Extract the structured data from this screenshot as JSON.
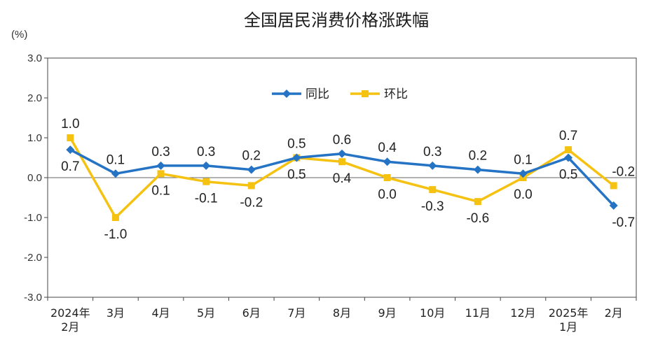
{
  "chart_data": {
    "type": "line",
    "title": "全国居民消费价格涨跌幅",
    "unit_label": "(%)",
    "ylim": [
      -3.0,
      3.0
    ],
    "y_ticks": [
      "3.0",
      "2.0",
      "1.0",
      "0.0",
      "-1.0",
      "-2.0",
      "-3.0"
    ],
    "categories": [
      [
        "2024年",
        "2月"
      ],
      [
        "3月"
      ],
      [
        "4月"
      ],
      [
        "5月"
      ],
      [
        "6月"
      ],
      [
        "7月"
      ],
      [
        "8月"
      ],
      [
        "9月"
      ],
      [
        "10月"
      ],
      [
        "11月"
      ],
      [
        "12月"
      ],
      [
        "2025年",
        "1月"
      ],
      [
        "2月"
      ]
    ],
    "legend_position": "top-center",
    "grid": false,
    "series": [
      {
        "name": "同比",
        "color": "#2473c4",
        "marker": "diamond",
        "values": [
          0.7,
          0.1,
          0.3,
          0.3,
          0.2,
          0.5,
          0.6,
          0.4,
          0.3,
          0.2,
          0.1,
          0.5,
          -0.7
        ],
        "labels": [
          "0.7",
          "0.1",
          "0.3",
          "0.3",
          "0.2",
          "0.5",
          "0.6",
          "0.4",
          "0.3",
          "0.2",
          "0.1",
          "0.5",
          "-0.7"
        ]
      },
      {
        "name": "环比",
        "color": "#f5c211",
        "marker": "square",
        "values": [
          1.0,
          -1.0,
          0.1,
          -0.1,
          -0.2,
          0.5,
          0.4,
          0.0,
          -0.3,
          -0.6,
          0.0,
          0.7,
          -0.2
        ],
        "labels": [
          "1.0",
          "-1.0",
          "0.1",
          "-0.1",
          "-0.2",
          "0.5",
          "0.4",
          "0.0",
          "-0.3",
          "-0.6",
          "0.0",
          "0.7",
          "-0.2"
        ]
      }
    ]
  }
}
